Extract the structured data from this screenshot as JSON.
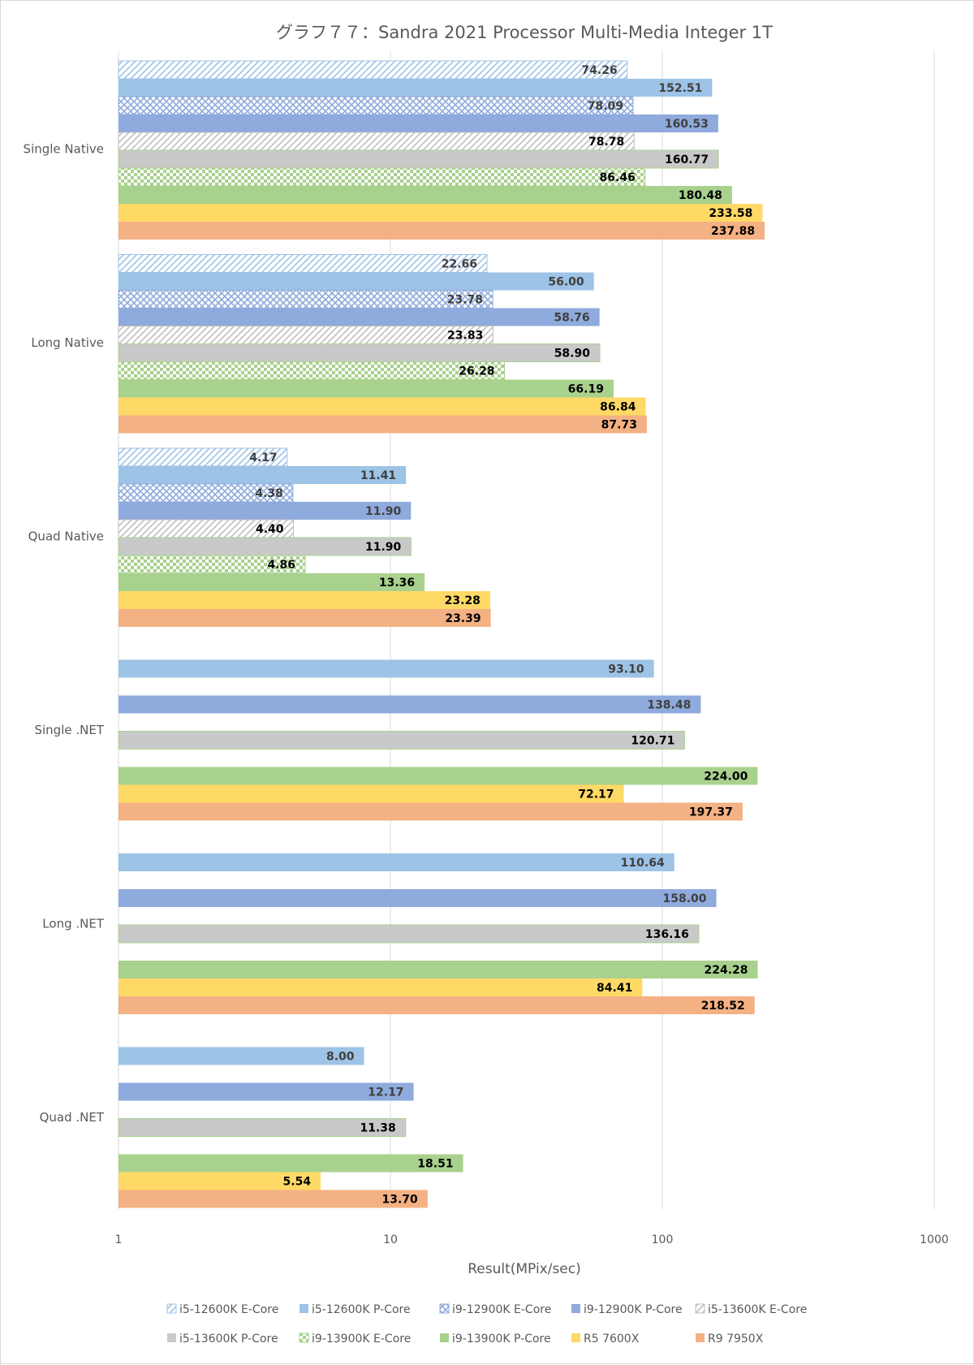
{
  "chart_data": {
    "type": "bar",
    "orientation": "horizontal",
    "title": "グラフ７７：Sandra 2021 Processor Multi-Media Integer 1T",
    "xlabel": "Result(MPix/sec)",
    "ylabel": "",
    "x_scale": "log",
    "xlim": [
      1,
      1000
    ],
    "x_ticks": [
      "1",
      "10",
      "100",
      "1000"
    ],
    "grid": true,
    "legend_position": "bottom",
    "categories": [
      "Single Native",
      "Long Native",
      "Quad Native",
      "Single .NET",
      "Long .NET",
      "Quad .NET"
    ],
    "series": [
      {
        "name": "i5-12600K E-Core",
        "color": "#9dc3e6",
        "pattern": "diagonal-stripes",
        "values": [
          74.26,
          22.66,
          4.17,
          null,
          null,
          null
        ],
        "labels": [
          "74.26",
          "22.66",
          "4.17",
          "",
          "",
          ""
        ]
      },
      {
        "name": "i5-12600K P-Core",
        "color": "#9dc3e6",
        "pattern": "solid",
        "values": [
          152.51,
          56.0,
          11.41,
          93.1,
          110.64,
          8.0
        ],
        "labels": [
          "152.51",
          "56.00",
          "11.41",
          "93.10",
          "110.64",
          "8.00"
        ]
      },
      {
        "name": "i9-12900K E-Core",
        "color": "#8faadc",
        "pattern": "crosshatch",
        "values": [
          78.09,
          23.78,
          4.38,
          null,
          null,
          null
        ],
        "labels": [
          "78.09",
          "23.78",
          "4.38",
          "",
          "",
          ""
        ]
      },
      {
        "name": "i9-12900K P-Core",
        "color": "#8faadc",
        "pattern": "solid",
        "values": [
          160.53,
          58.76,
          11.9,
          138.48,
          158.0,
          12.17
        ],
        "labels": [
          "160.53",
          "58.76",
          "11.90",
          "138.48",
          "158.00",
          "12.17"
        ]
      },
      {
        "name": "i5-13600K E-Core",
        "color": "#bfbfbf",
        "pattern": "diagonal-stripes",
        "values": [
          78.78,
          23.83,
          4.4,
          null,
          null,
          null
        ],
        "labels": [
          "78.78",
          "23.83",
          "4.40",
          "",
          "",
          ""
        ]
      },
      {
        "name": "i5-13600K P-Core",
        "color": "#c9c9c9",
        "pattern": "solid",
        "values": [
          160.77,
          58.9,
          11.9,
          120.71,
          136.16,
          11.38
        ],
        "labels": [
          "160.77",
          "58.90",
          "11.90",
          "120.71",
          "136.16",
          "11.38"
        ]
      },
      {
        "name": "i9-13900K E-Core",
        "color": "#a9d18e",
        "pattern": "checker",
        "values": [
          86.46,
          26.28,
          4.86,
          null,
          null,
          null
        ],
        "labels": [
          "86.46",
          "26.28",
          "4.86",
          "",
          "",
          ""
        ]
      },
      {
        "name": "i9-13900K P-Core",
        "color": "#a9d18e",
        "pattern": "solid",
        "values": [
          180.48,
          66.19,
          13.36,
          224.0,
          224.28,
          18.51
        ],
        "labels": [
          "180.48",
          "66.19",
          "13.36",
          "224.00",
          "224.28",
          "18.51"
        ]
      },
      {
        "name": "R5 7600X",
        "color": "#ffd966",
        "pattern": "solid",
        "values": [
          233.58,
          86.84,
          23.28,
          72.17,
          84.41,
          5.54
        ],
        "labels": [
          "233.58",
          "86.84",
          "23.28",
          "72.17",
          "84.41",
          "5.54"
        ]
      },
      {
        "name": "R9 7950X",
        "color": "#f4b183",
        "pattern": "solid",
        "values": [
          237.88,
          87.73,
          23.39,
          197.37,
          218.52,
          13.7
        ],
        "labels": [
          "237.88",
          "87.73",
          "23.39",
          "197.37",
          "218.52",
          "13.70"
        ]
      }
    ]
  }
}
